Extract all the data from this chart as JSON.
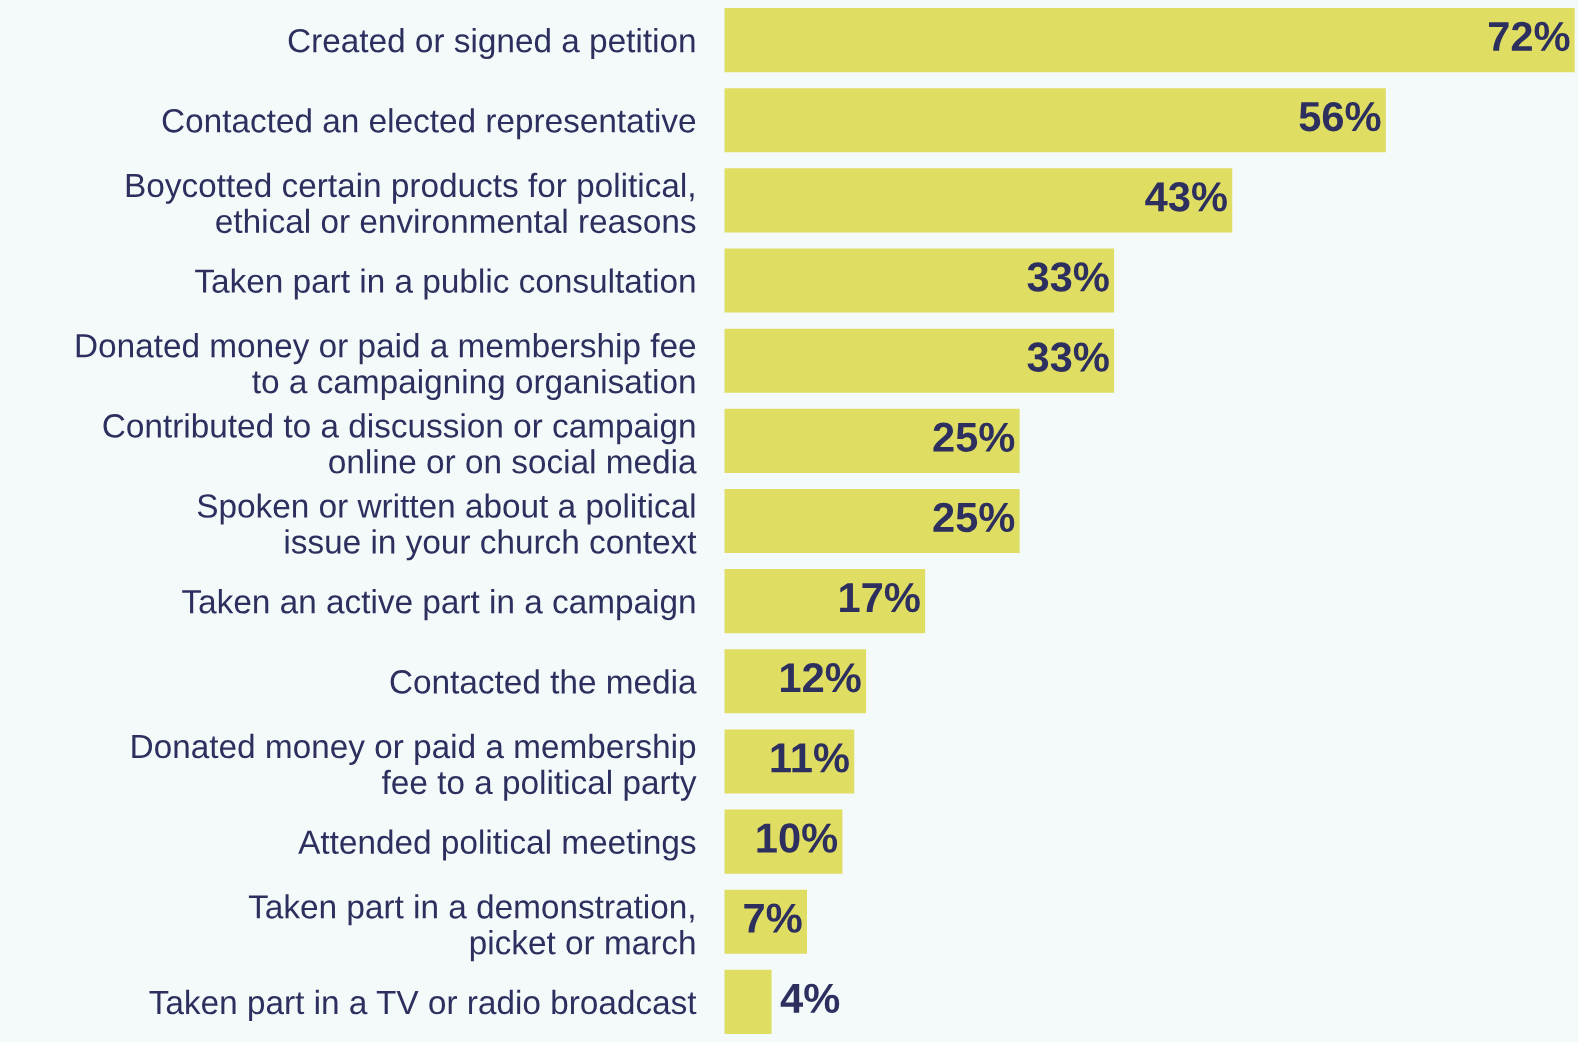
{
  "chart_data": {
    "type": "bar",
    "orientation": "horizontal",
    "categories": [
      "Created or signed a petition",
      "Contacted an elected representative",
      "Boycotted certain products for political,\nethical or environmental reasons",
      "Taken part in a public consultation",
      "Donated money or paid a membership fee\nto a campaigning organisation",
      "Contributed to a discussion or campaign\nonline or on social media",
      "Spoken or written about a political\nissue in your church context",
      "Taken an active part in a campaign",
      "Contacted the media",
      "Donated money or paid a membership\nfee to a political party",
      "Attended political meetings",
      "Taken part in a demonstration,\npicket or march",
      "Taken part in a TV or radio broadcast"
    ],
    "values": [
      72,
      56,
      43,
      33,
      33,
      25,
      25,
      17,
      12,
      11,
      10,
      7,
      4
    ],
    "value_labels": [
      "72%",
      "56%",
      "43%",
      "33%",
      "33%",
      "25%",
      "25%",
      "17%",
      "12%",
      "11%",
      "10%",
      "7%",
      "4%"
    ],
    "color": "#e0dd63",
    "grid": false,
    "legend": false
  }
}
